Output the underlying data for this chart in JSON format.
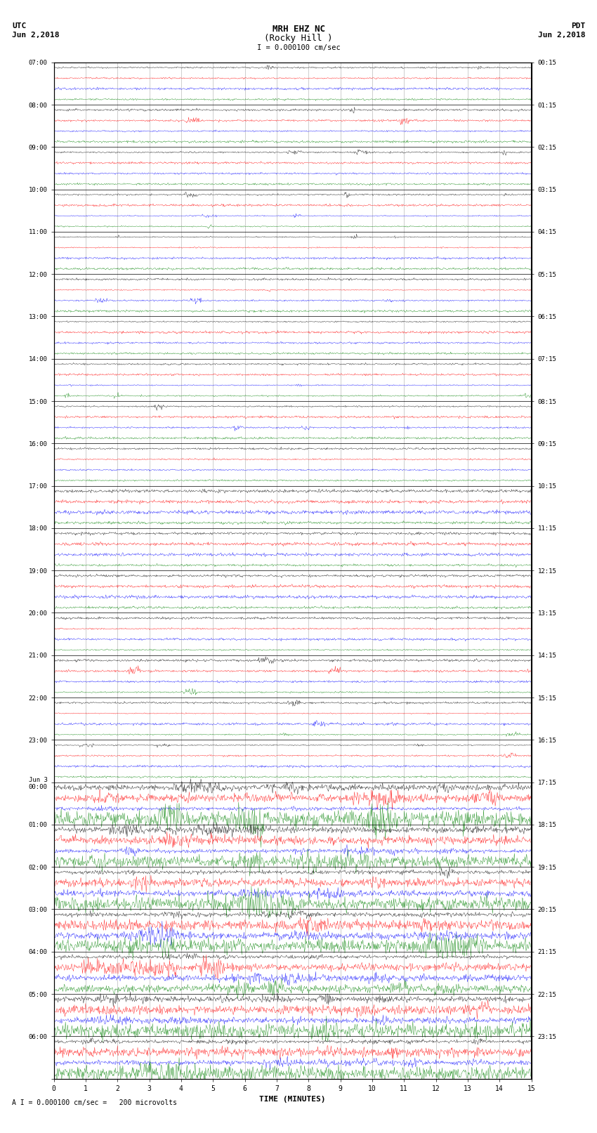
{
  "title_line1": "MRH EHZ NC",
  "title_line2": "(Rocky Hill )",
  "scale_label": "I = 0.000100 cm/sec",
  "left_header1": "UTC",
  "left_header2": "Jun 2,2018",
  "right_header1": "PDT",
  "right_header2": "Jun 2,2018",
  "bottom_label": "TIME (MINUTES)",
  "bottom_scale": "A I = 0.000100 cm/sec =   200 microvolts",
  "utc_times": [
    "07:00",
    "08:00",
    "09:00",
    "10:00",
    "11:00",
    "12:00",
    "13:00",
    "14:00",
    "15:00",
    "16:00",
    "17:00",
    "18:00",
    "19:00",
    "20:00",
    "21:00",
    "22:00",
    "23:00",
    "Jun 3\n00:00",
    "01:00",
    "02:00",
    "03:00",
    "04:00",
    "05:00",
    "06:00"
  ],
  "pdt_times": [
    "00:15",
    "01:15",
    "02:15",
    "03:15",
    "04:15",
    "05:15",
    "06:15",
    "07:15",
    "08:15",
    "09:15",
    "10:15",
    "11:15",
    "12:15",
    "13:15",
    "14:15",
    "15:15",
    "16:15",
    "17:15",
    "18:15",
    "19:15",
    "20:15",
    "21:15",
    "22:15",
    "23:15"
  ],
  "n_rows": 24,
  "n_traces_per_row": 4,
  "trace_colors": [
    "black",
    "red",
    "blue",
    "green"
  ],
  "minutes_per_row": 15,
  "bg_color": "white",
  "grid_color": "#aaaaaa",
  "large_event_rows": [
    17,
    18,
    19,
    20,
    21,
    22,
    23
  ],
  "medium_event_rows": [
    10,
    11,
    12
  ],
  "figsize": [
    8.5,
    16.13
  ],
  "dpi": 100
}
